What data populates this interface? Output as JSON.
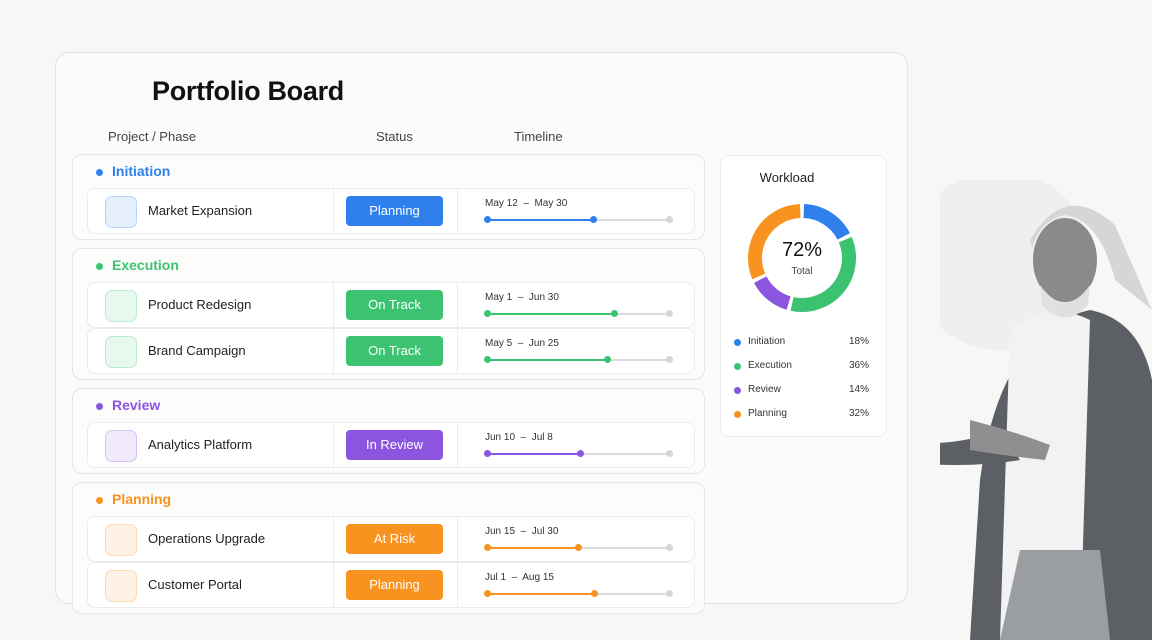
{
  "title": "Portfolio Board",
  "columns": [
    "Project / Phase",
    "Status",
    "Timeline"
  ],
  "groups": [
    {
      "name": "Initiation",
      "color": "#2f80ed",
      "projects": [
        {
          "name": "Market Expansion",
          "status": "Planning",
          "timeline": "May 12  –  May 30",
          "progress": 58
        }
      ]
    },
    {
      "name": "Execution",
      "color": "#3cc372",
      "projects": [
        {
          "name": "Product Redesign",
          "status": "On Track",
          "timeline": "May 1  –  Jun 30",
          "progress": 70
        },
        {
          "name": "Brand Campaign",
          "status": "On Track",
          "timeline": "May 5  –  Jun 25",
          "progress": 66
        }
      ]
    },
    {
      "name": "Review",
      "color": "#8b55e0",
      "projects": [
        {
          "name": "Analytics Platform",
          "status": "In Review",
          "timeline": "Jun 10  –  Jul 8",
          "progress": 51
        }
      ]
    },
    {
      "name": "Planning",
      "color": "#f7931e",
      "projects": [
        {
          "name": "Operations Upgrade",
          "status": "At Risk",
          "timeline": "Jun 15  –  Jul 30",
          "progress": 50
        },
        {
          "name": "Customer Portal",
          "status": "Planning",
          "timeline": "Jul 1  –  Aug 15",
          "progress": 59
        }
      ]
    }
  ],
  "workload": {
    "type": "donut",
    "title": "Workload",
    "center_value": "72%",
    "center_label": "Total",
    "categories": [
      "Initiation",
      "Execution",
      "Review",
      "Planning"
    ],
    "colors": [
      "#2f80ed",
      "#3cc372",
      "#8b55e0",
      "#f7931e"
    ],
    "values": [
      18,
      36,
      14,
      32
    ],
    "value_labels": [
      "18%",
      "36%",
      "14%",
      "32%"
    ]
  }
}
